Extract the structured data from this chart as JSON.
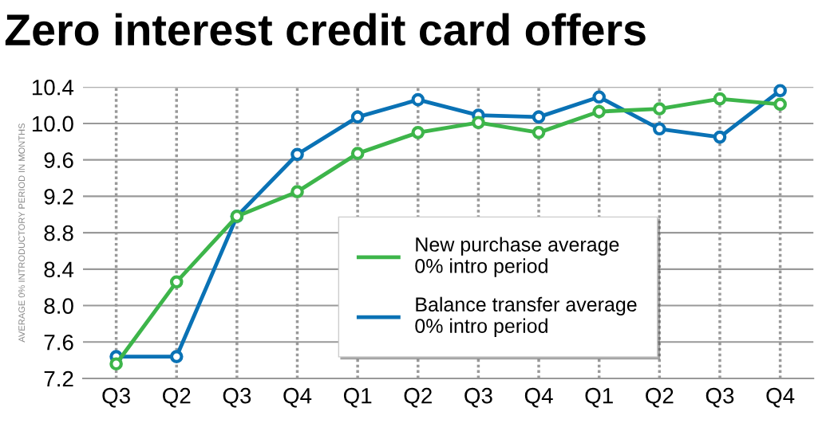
{
  "chart_data": {
    "type": "line",
    "title": "Zero interest credit card offers",
    "ylabel": "AVERAGE 0% INTRODUCTORY PERIOD IN MONTHS",
    "categories": [
      "Q3",
      "Q2",
      "Q3",
      "Q4",
      "Q1",
      "Q2",
      "Q3",
      "Q4",
      "Q1",
      "Q2",
      "Q3",
      "Q4"
    ],
    "series": [
      {
        "name": "New purchase average\n0% intro period",
        "color": "#3db54a",
        "values": [
          7.36,
          8.26,
          8.98,
          9.25,
          9.67,
          9.9,
          10.01,
          9.9,
          10.13,
          10.16,
          10.27,
          10.21
        ]
      },
      {
        "name": "Balance transfer average\n0% intro period",
        "color": "#0a72b5",
        "values": [
          7.44,
          7.44,
          8.98,
          9.66,
          10.07,
          10.26,
          10.09,
          10.07,
          10.29,
          9.94,
          9.85,
          10.36
        ]
      }
    ],
    "ylim": [
      7.2,
      10.4
    ],
    "yticks": [
      7.2,
      7.6,
      {
        "value": 8,
        "label": "8.0"
      },
      8.4,
      8.8,
      9.2,
      9.6,
      {
        "value": 10,
        "label": "10.0"
      },
      10.4
    ],
    "grid": true,
    "legend": "bottom right",
    "marker": "circle",
    "line_style": "solid"
  }
}
